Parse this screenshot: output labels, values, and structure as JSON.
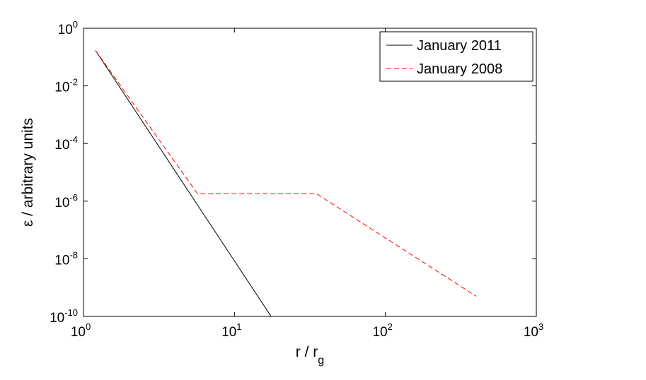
{
  "chart_data": {
    "type": "line",
    "xscale": "log",
    "yscale": "log",
    "xlim": [
      1,
      1000
    ],
    "ylim": [
      1e-10,
      1
    ],
    "xlabel": "r / r",
    "xlabel_sub": "g",
    "ylabel": "ε / arbitrary units",
    "xticks": [
      {
        "base": "10",
        "exp": "0",
        "value": 1
      },
      {
        "base": "10",
        "exp": "1",
        "value": 10
      },
      {
        "base": "10",
        "exp": "2",
        "value": 100
      },
      {
        "base": "10",
        "exp": "3",
        "value": 1000
      }
    ],
    "yticks": [
      {
        "base": "10",
        "exp": "0",
        "value": 1
      },
      {
        "base": "10",
        "exp": "-2",
        "value": 0.01
      },
      {
        "base": "10",
        "exp": "-4",
        "value": 0.0001
      },
      {
        "base": "10",
        "exp": "-6",
        "value": 1e-06
      },
      {
        "base": "10",
        "exp": "-8",
        "value": 1e-08
      },
      {
        "base": "10",
        "exp": "-10",
        "value": 1e-10
      }
    ],
    "legend_position": "top-right",
    "series": [
      {
        "name": "January 2011",
        "color": "#000000",
        "style": "solid",
        "x": [
          1.2,
          17.5
        ],
        "y": [
          0.17,
          1e-10
        ]
      },
      {
        "name": "January 2008",
        "color": "#ff0000",
        "style": "dashed",
        "x": [
          1.2,
          5.7,
          35,
          400
        ],
        "y": [
          0.17,
          1.8e-06,
          1.8e-06,
          5e-10
        ]
      }
    ]
  }
}
